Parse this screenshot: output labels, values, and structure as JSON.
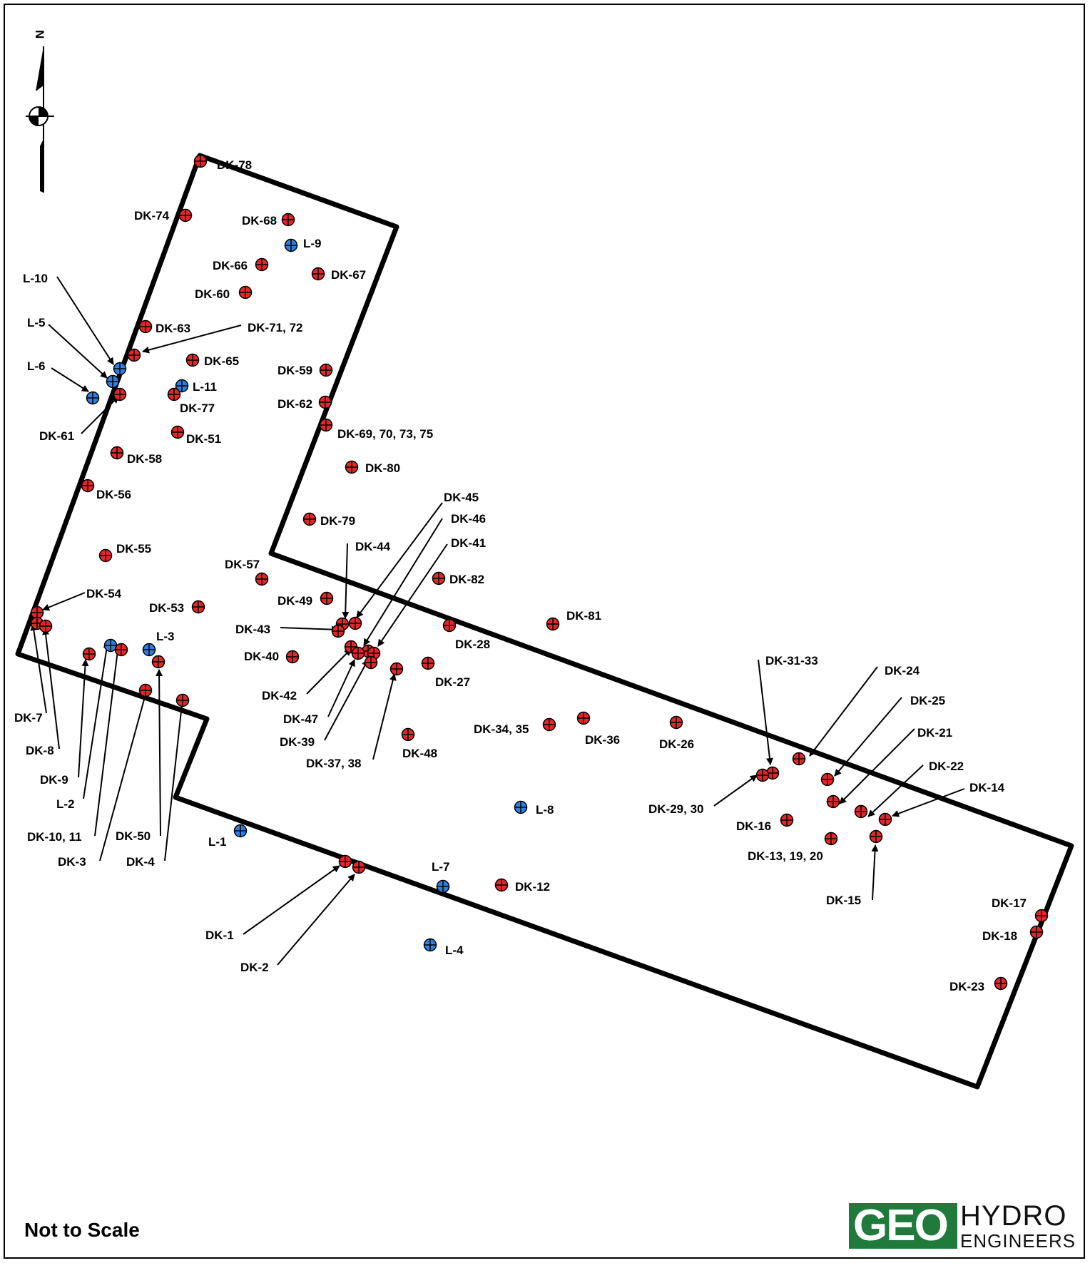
{
  "north_label": "N",
  "scale_note": "Not to Scale",
  "logo": {
    "left": "GEO",
    "right_top": "HYDRO",
    "right_bottom": "ENGINEERS",
    "color": "#1f7a3c"
  },
  "colors": {
    "dk_point": "#e32626",
    "l_point": "#2f7fe0"
  },
  "points": [
    {
      "label": "DK-78",
      "type": "dk"
    },
    {
      "label": "DK-74",
      "type": "dk"
    },
    {
      "label": "DK-68",
      "type": "dk"
    },
    {
      "label": "L-9",
      "type": "l"
    },
    {
      "label": "DK-66",
      "type": "dk"
    },
    {
      "label": "DK-67",
      "type": "dk"
    },
    {
      "label": "DK-60",
      "type": "dk"
    },
    {
      "label": "L-10",
      "type": "l"
    },
    {
      "label": "DK-63",
      "type": "dk"
    },
    {
      "label": "DK-71, 72",
      "type": "dk"
    },
    {
      "label": "L-5",
      "type": "l"
    },
    {
      "label": "DK-65",
      "type": "dk"
    },
    {
      "label": "L-6",
      "type": "l"
    },
    {
      "label": "L-11",
      "type": "l"
    },
    {
      "label": "DK-77",
      "type": "dk"
    },
    {
      "label": "DK-59",
      "type": "dk"
    },
    {
      "label": "DK-62",
      "type": "dk"
    },
    {
      "label": "DK-61",
      "type": "dk"
    },
    {
      "label": "DK-51",
      "type": "dk"
    },
    {
      "label": "DK-69, 70, 73, 75",
      "type": "dk"
    },
    {
      "label": "DK-58",
      "type": "dk"
    },
    {
      "label": "DK-80",
      "type": "dk"
    },
    {
      "label": "DK-56",
      "type": "dk"
    },
    {
      "label": "DK-79",
      "type": "dk"
    },
    {
      "label": "DK-55",
      "type": "dk"
    },
    {
      "label": "DK-57",
      "type": "dk"
    },
    {
      "label": "DK-54",
      "type": "dk"
    },
    {
      "label": "DK-53",
      "type": "dk"
    },
    {
      "label": "DK-49",
      "type": "dk"
    },
    {
      "label": "DK-44",
      "type": "dk"
    },
    {
      "label": "DK-45",
      "type": "dk"
    },
    {
      "label": "DK-46",
      "type": "dk"
    },
    {
      "label": "DK-41",
      "type": "dk"
    },
    {
      "label": "DK-82",
      "type": "dk"
    },
    {
      "label": "DK-43",
      "type": "dk"
    },
    {
      "label": "DK-81",
      "type": "dk"
    },
    {
      "label": "DK-28",
      "type": "dk"
    },
    {
      "label": "DK-40",
      "type": "dk"
    },
    {
      "label": "L-3",
      "type": "l"
    },
    {
      "label": "DK-7",
      "type": "dk"
    },
    {
      "label": "DK-8",
      "type": "dk"
    },
    {
      "label": "DK-9",
      "type": "dk"
    },
    {
      "label": "L-2",
      "type": "l"
    },
    {
      "label": "DK-10, 11",
      "type": "dk"
    },
    {
      "label": "DK-3",
      "type": "dk"
    },
    {
      "label": "DK-50",
      "type": "dk"
    },
    {
      "label": "DK-4",
      "type": "dk"
    },
    {
      "label": "DK-42",
      "type": "dk"
    },
    {
      "label": "DK-47",
      "type": "dk"
    },
    {
      "label": "DK-39",
      "type": "dk"
    },
    {
      "label": "DK-37, 38",
      "type": "dk"
    },
    {
      "label": "DK-27",
      "type": "dk"
    },
    {
      "label": "DK-48",
      "type": "dk"
    },
    {
      "label": "DK-34, 35",
      "type": "dk"
    },
    {
      "label": "DK-36",
      "type": "dk"
    },
    {
      "label": "DK-26",
      "type": "dk"
    },
    {
      "label": "DK-31-33",
      "type": "dk"
    },
    {
      "label": "DK-24",
      "type": "dk"
    },
    {
      "label": "DK-25",
      "type": "dk"
    },
    {
      "label": "DK-21",
      "type": "dk"
    },
    {
      "label": "DK-22",
      "type": "dk"
    },
    {
      "label": "DK-14",
      "type": "dk"
    },
    {
      "label": "DK-29, 30",
      "type": "dk"
    },
    {
      "label": "DK-16",
      "type": "dk"
    },
    {
      "label": "DK-13, 19, 20",
      "type": "dk"
    },
    {
      "label": "DK-15",
      "type": "dk"
    },
    {
      "label": "L-8",
      "type": "l"
    },
    {
      "label": "L-1",
      "type": "l"
    },
    {
      "label": "L-7",
      "type": "l"
    },
    {
      "label": "DK-12",
      "type": "dk"
    },
    {
      "label": "DK-1",
      "type": "dk"
    },
    {
      "label": "DK-2",
      "type": "dk"
    },
    {
      "label": "L-4",
      "type": "l"
    },
    {
      "label": "DK-17",
      "type": "dk"
    },
    {
      "label": "DK-18",
      "type": "dk"
    },
    {
      "label": "DK-23",
      "type": "dk"
    }
  ]
}
